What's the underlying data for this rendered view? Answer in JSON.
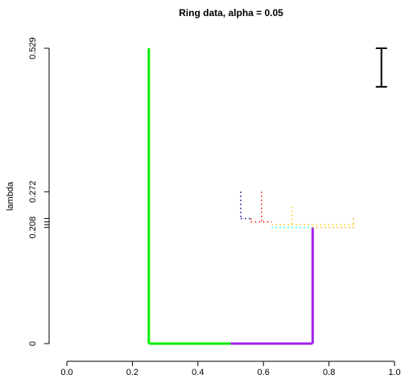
{
  "chart_data": {
    "type": "line",
    "title": "Ring data, alpha = 0.05",
    "xlabel": "",
    "ylabel": "lambda",
    "xlim": [
      0,
      1
    ],
    "ylim": [
      0,
      0.529
    ],
    "x_ticks": [
      {
        "value": 0.0,
        "label": "0.0"
      },
      {
        "value": 0.2,
        "label": "0.2"
      },
      {
        "value": 0.4,
        "label": "0.4"
      },
      {
        "value": 0.6,
        "label": "0.6"
      },
      {
        "value": 0.8,
        "label": "0.8"
      },
      {
        "value": 1.0,
        "label": "1.0"
      }
    ],
    "y_ticks": [
      {
        "value": 0,
        "label": "0"
      },
      {
        "value": 0.208,
        "label": "0.208"
      },
      {
        "value": 0.272,
        "label": "0.272"
      },
      {
        "value": 0.529,
        "label": "0.529"
      }
    ],
    "y_minor_ticks": [
      0.213,
      0.218,
      0.224
    ],
    "series": [
      {
        "color": "#00ee00",
        "style": "solid",
        "width": 3,
        "x": [
          0.25,
          0.25
        ],
        "y": [
          0.529,
          0.0
        ]
      },
      {
        "color": "#00ee00",
        "style": "solid",
        "width": 3,
        "x": [
          0.25,
          0.5
        ],
        "y": [
          0.0,
          0.0
        ]
      },
      {
        "color": "#a020f0",
        "style": "solid",
        "width": 3,
        "x": [
          0.5,
          0.75
        ],
        "y": [
          0.0,
          0.0
        ]
      },
      {
        "color": "#a020f0",
        "style": "solid",
        "width": 3,
        "x": [
          0.75,
          0.75
        ],
        "y": [
          0.0,
          0.208
        ]
      },
      {
        "color": "#00008b",
        "style": "dotted",
        "width": 1.5,
        "x": [
          0.531,
          0.531
        ],
        "y": [
          0.272,
          0.224
        ]
      },
      {
        "color": "#00008b",
        "style": "dotted",
        "width": 1.5,
        "x": [
          0.531,
          0.562
        ],
        "y": [
          0.224,
          0.224
        ]
      },
      {
        "color": "#ff0000",
        "style": "dotted",
        "width": 1.5,
        "x": [
          0.594,
          0.594
        ],
        "y": [
          0.272,
          0.218
        ]
      },
      {
        "color": "#ff0000",
        "style": "dotted",
        "width": 1.5,
        "x": [
          0.562,
          0.625
        ],
        "y": [
          0.218,
          0.218
        ]
      },
      {
        "color": "#ff0000",
        "style": "dotted",
        "width": 1.5,
        "x": [
          0.562,
          0.562
        ],
        "y": [
          0.224,
          0.218
        ]
      },
      {
        "color": "#ffd700",
        "style": "dotted",
        "width": 1.5,
        "x": [
          0.688,
          0.688
        ],
        "y": [
          0.245,
          0.213
        ]
      },
      {
        "color": "#ffd700",
        "style": "dotted",
        "width": 1.5,
        "x": [
          0.625,
          0.875
        ],
        "y": [
          0.213,
          0.213
        ]
      },
      {
        "color": "#ffa500",
        "style": "dotted",
        "width": 1.5,
        "x": [
          0.875,
          0.875
        ],
        "y": [
          0.224,
          0.208
        ]
      },
      {
        "color": "#00ffff",
        "style": "dotted",
        "width": 1.5,
        "x": [
          0.625,
          0.75
        ],
        "y": [
          0.208,
          0.208
        ]
      },
      {
        "color": "#ffa500",
        "style": "dotted",
        "width": 1.5,
        "x": [
          0.75,
          0.875
        ],
        "y": [
          0.208,
          0.208
        ]
      }
    ],
    "error_bar": {
      "x": 0.96,
      "y_low": 0.46,
      "y_high": 0.529
    },
    "grid": false,
    "legend": "none"
  }
}
